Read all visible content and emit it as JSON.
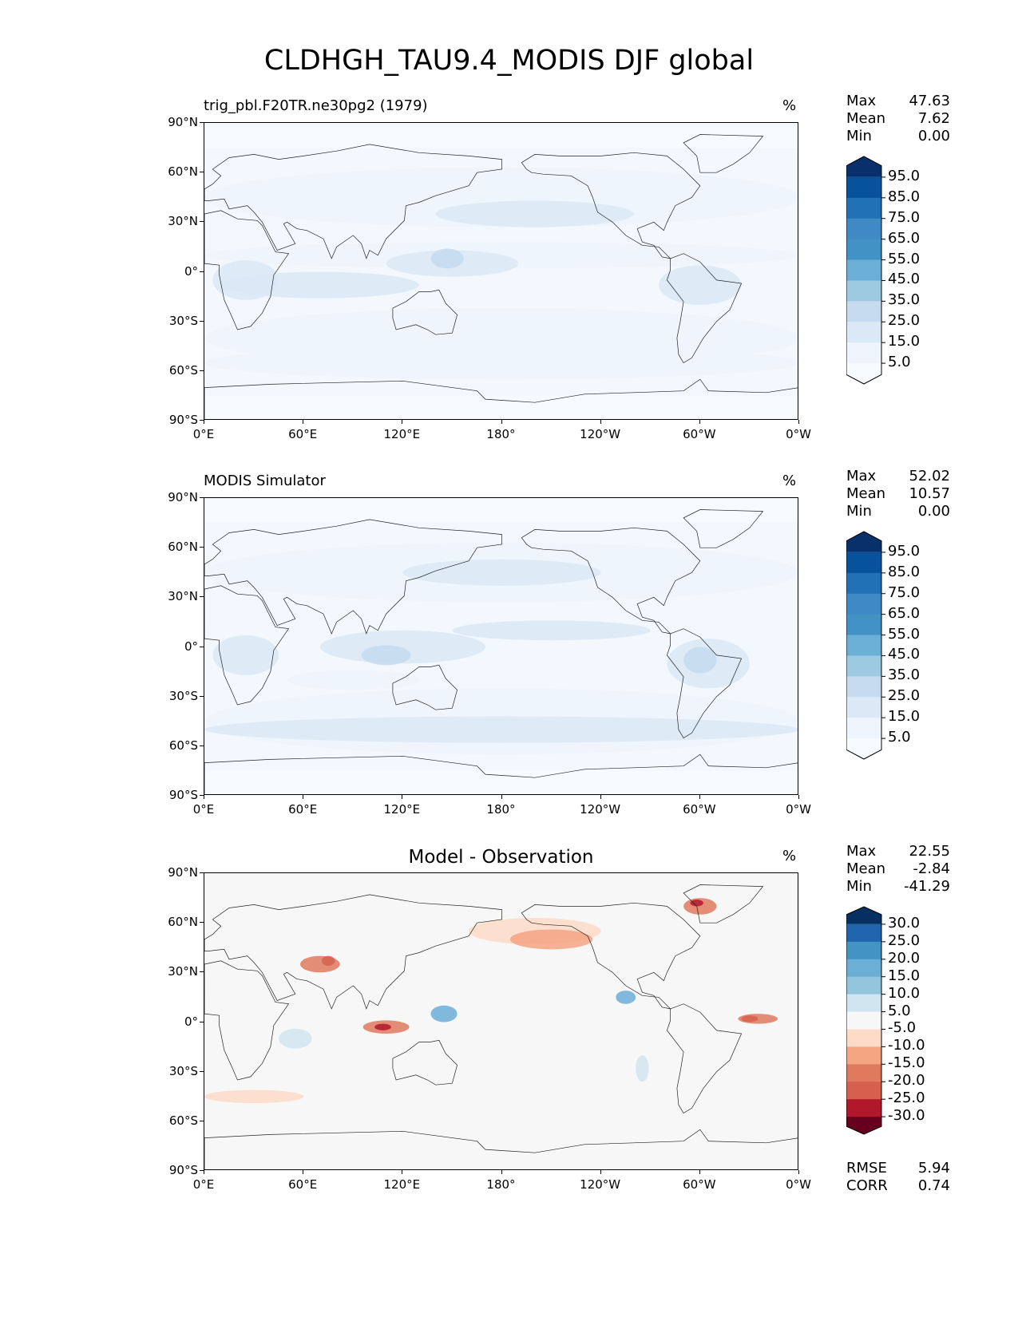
{
  "figure": {
    "title": "CLDHGH_TAU9.4_MODIS DJF global"
  },
  "axes": {
    "lat_ticks": [
      "90°N",
      "60°N",
      "30°N",
      "0°",
      "30°S",
      "60°S",
      "90°S"
    ],
    "lon_ticks": [
      "0°E",
      "60°E",
      "120°E",
      "180°",
      "120°W",
      "60°W",
      "0°W"
    ]
  },
  "panels": [
    {
      "title": "trig_pbl.F20TR.ne30pg2 (1979)",
      "title_center": false,
      "units": "%",
      "stats": [
        {
          "label": "Max",
          "value": "47.63"
        },
        {
          "label": "Mean",
          "value": "7.62"
        },
        {
          "label": "Min",
          "value": "0.00"
        }
      ],
      "colorbar": {
        "labels": [
          "95.0",
          "85.0",
          "75.0",
          "65.0",
          "55.0",
          "45.0",
          "35.0",
          "25.0",
          "15.0",
          "5.0"
        ],
        "colors": [
          "#08306b",
          "#08519c",
          "#2171b5",
          "#3f8ac4",
          "#4292c6",
          "#6baed6",
          "#9ecae1",
          "#c6dbef",
          "#dbe9f6",
          "#eef5fc",
          "#f7fbff"
        ]
      },
      "footer": []
    },
    {
      "title": "MODIS Simulator",
      "title_center": false,
      "units": "%",
      "stats": [
        {
          "label": "Max",
          "value": "52.02"
        },
        {
          "label": "Mean",
          "value": "10.57"
        },
        {
          "label": "Min",
          "value": "0.00"
        }
      ],
      "colorbar": {
        "labels": [
          "95.0",
          "85.0",
          "75.0",
          "65.0",
          "55.0",
          "45.0",
          "35.0",
          "25.0",
          "15.0",
          "5.0"
        ],
        "colors": [
          "#08306b",
          "#08519c",
          "#2171b5",
          "#3f8ac4",
          "#4292c6",
          "#6baed6",
          "#9ecae1",
          "#c6dbef",
          "#dbe9f6",
          "#eef5fc",
          "#f7fbff"
        ]
      },
      "footer": []
    },
    {
      "title": "Model - Observation",
      "title_center": true,
      "units": "%",
      "stats": [
        {
          "label": "Max",
          "value": "22.55"
        },
        {
          "label": "Mean",
          "value": "-2.84"
        },
        {
          "label": "Min",
          "value": "-41.29"
        }
      ],
      "colorbar": {
        "labels": [
          "30.0",
          "25.0",
          "20.0",
          "15.0",
          "10.0",
          "5.0",
          "-5.0",
          "-10.0",
          "-15.0",
          "-20.0",
          "-25.0",
          "-30.0"
        ],
        "colors": [
          "#053061",
          "#2166ac",
          "#4393c3",
          "#6baed6",
          "#92c5de",
          "#d1e5f0",
          "#f7f7f7",
          "#fddbc7",
          "#f4a582",
          "#e07a5f",
          "#d6604d",
          "#b2182b",
          "#67001f"
        ]
      },
      "footer": [
        {
          "label": "RMSE",
          "value": "5.94"
        },
        {
          "label": "CORR",
          "value": "0.74"
        }
      ]
    }
  ]
}
